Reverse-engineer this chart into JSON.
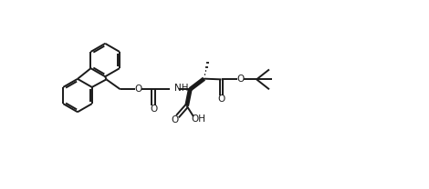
{
  "bg": "#ffffff",
  "lc": "#1a1a1a",
  "lw": 1.4,
  "fs": 7.5,
  "xlim": [
    0,
    10
  ],
  "ylim": [
    0,
    4.16
  ],
  "figw": 4.7,
  "figh": 2.08,
  "dpi": 100
}
